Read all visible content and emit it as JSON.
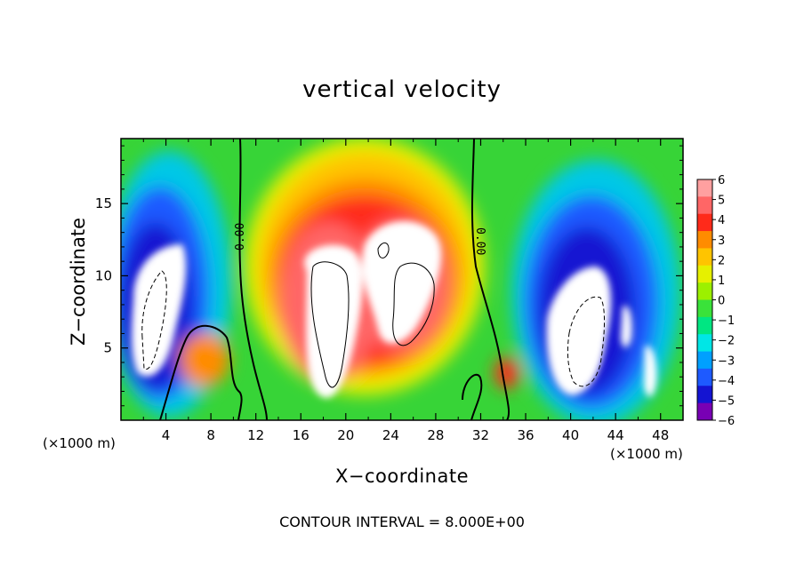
{
  "chart_data": {
    "type": "heatmap",
    "title": "vertical velocity",
    "xlabel": "X−coordinate",
    "ylabel": "Z−coordinate",
    "x_unit": "(×1000 m)",
    "y_unit": "(×1000 m)",
    "xlim": [
      0,
      50
    ],
    "ylim": [
      0,
      19.5
    ],
    "x_ticks": [
      4,
      8,
      12,
      16,
      20,
      24,
      28,
      32,
      36,
      40,
      44,
      48
    ],
    "y_ticks": [
      5,
      10,
      15
    ],
    "colorbar": {
      "ticks": [
        6,
        5,
        4,
        3,
        2,
        1,
        0,
        -1,
        -2,
        -3,
        -4,
        -5,
        -6
      ],
      "tick_labels": [
        "6",
        "5",
        "4",
        "3",
        "2",
        "1",
        "0",
        "−1",
        "−2",
        "−3",
        "−4",
        "−5",
        "−6"
      ],
      "range": [
        -6,
        6
      ]
    },
    "contour_labels": [
      {
        "text": "0.00",
        "x": 10.6,
        "z": 13
      },
      {
        "text": "0.00",
        "x": 32.5,
        "z": 12.5
      }
    ],
    "features": [
      {
        "name": "updraft-left",
        "center_x": 19.5,
        "center_z": 8.5,
        "value": 6
      },
      {
        "name": "updraft-right",
        "center_x": 25.5,
        "center_z": 9.5,
        "value": 6
      },
      {
        "name": "downdraft-left",
        "center_x": 4,
        "center_z": 8.5,
        "value": -6
      },
      {
        "name": "downdraft-right",
        "center_x": 41.5,
        "center_z": 6.5,
        "value": -6
      }
    ],
    "contour_interval_text": "CONTOUR INTERVAL =  8.000E+00"
  },
  "colors": {
    "colorbar": [
      "#ffa0a0",
      "#ff6666",
      "#ff2a1a",
      "#ff8c00",
      "#ffc400",
      "#e6f000",
      "#9cf000",
      "#3ae23a",
      "#00e682",
      "#00e6e6",
      "#00a0ff",
      "#1e5aff",
      "#1414d2",
      "#7800b4"
    ]
  }
}
